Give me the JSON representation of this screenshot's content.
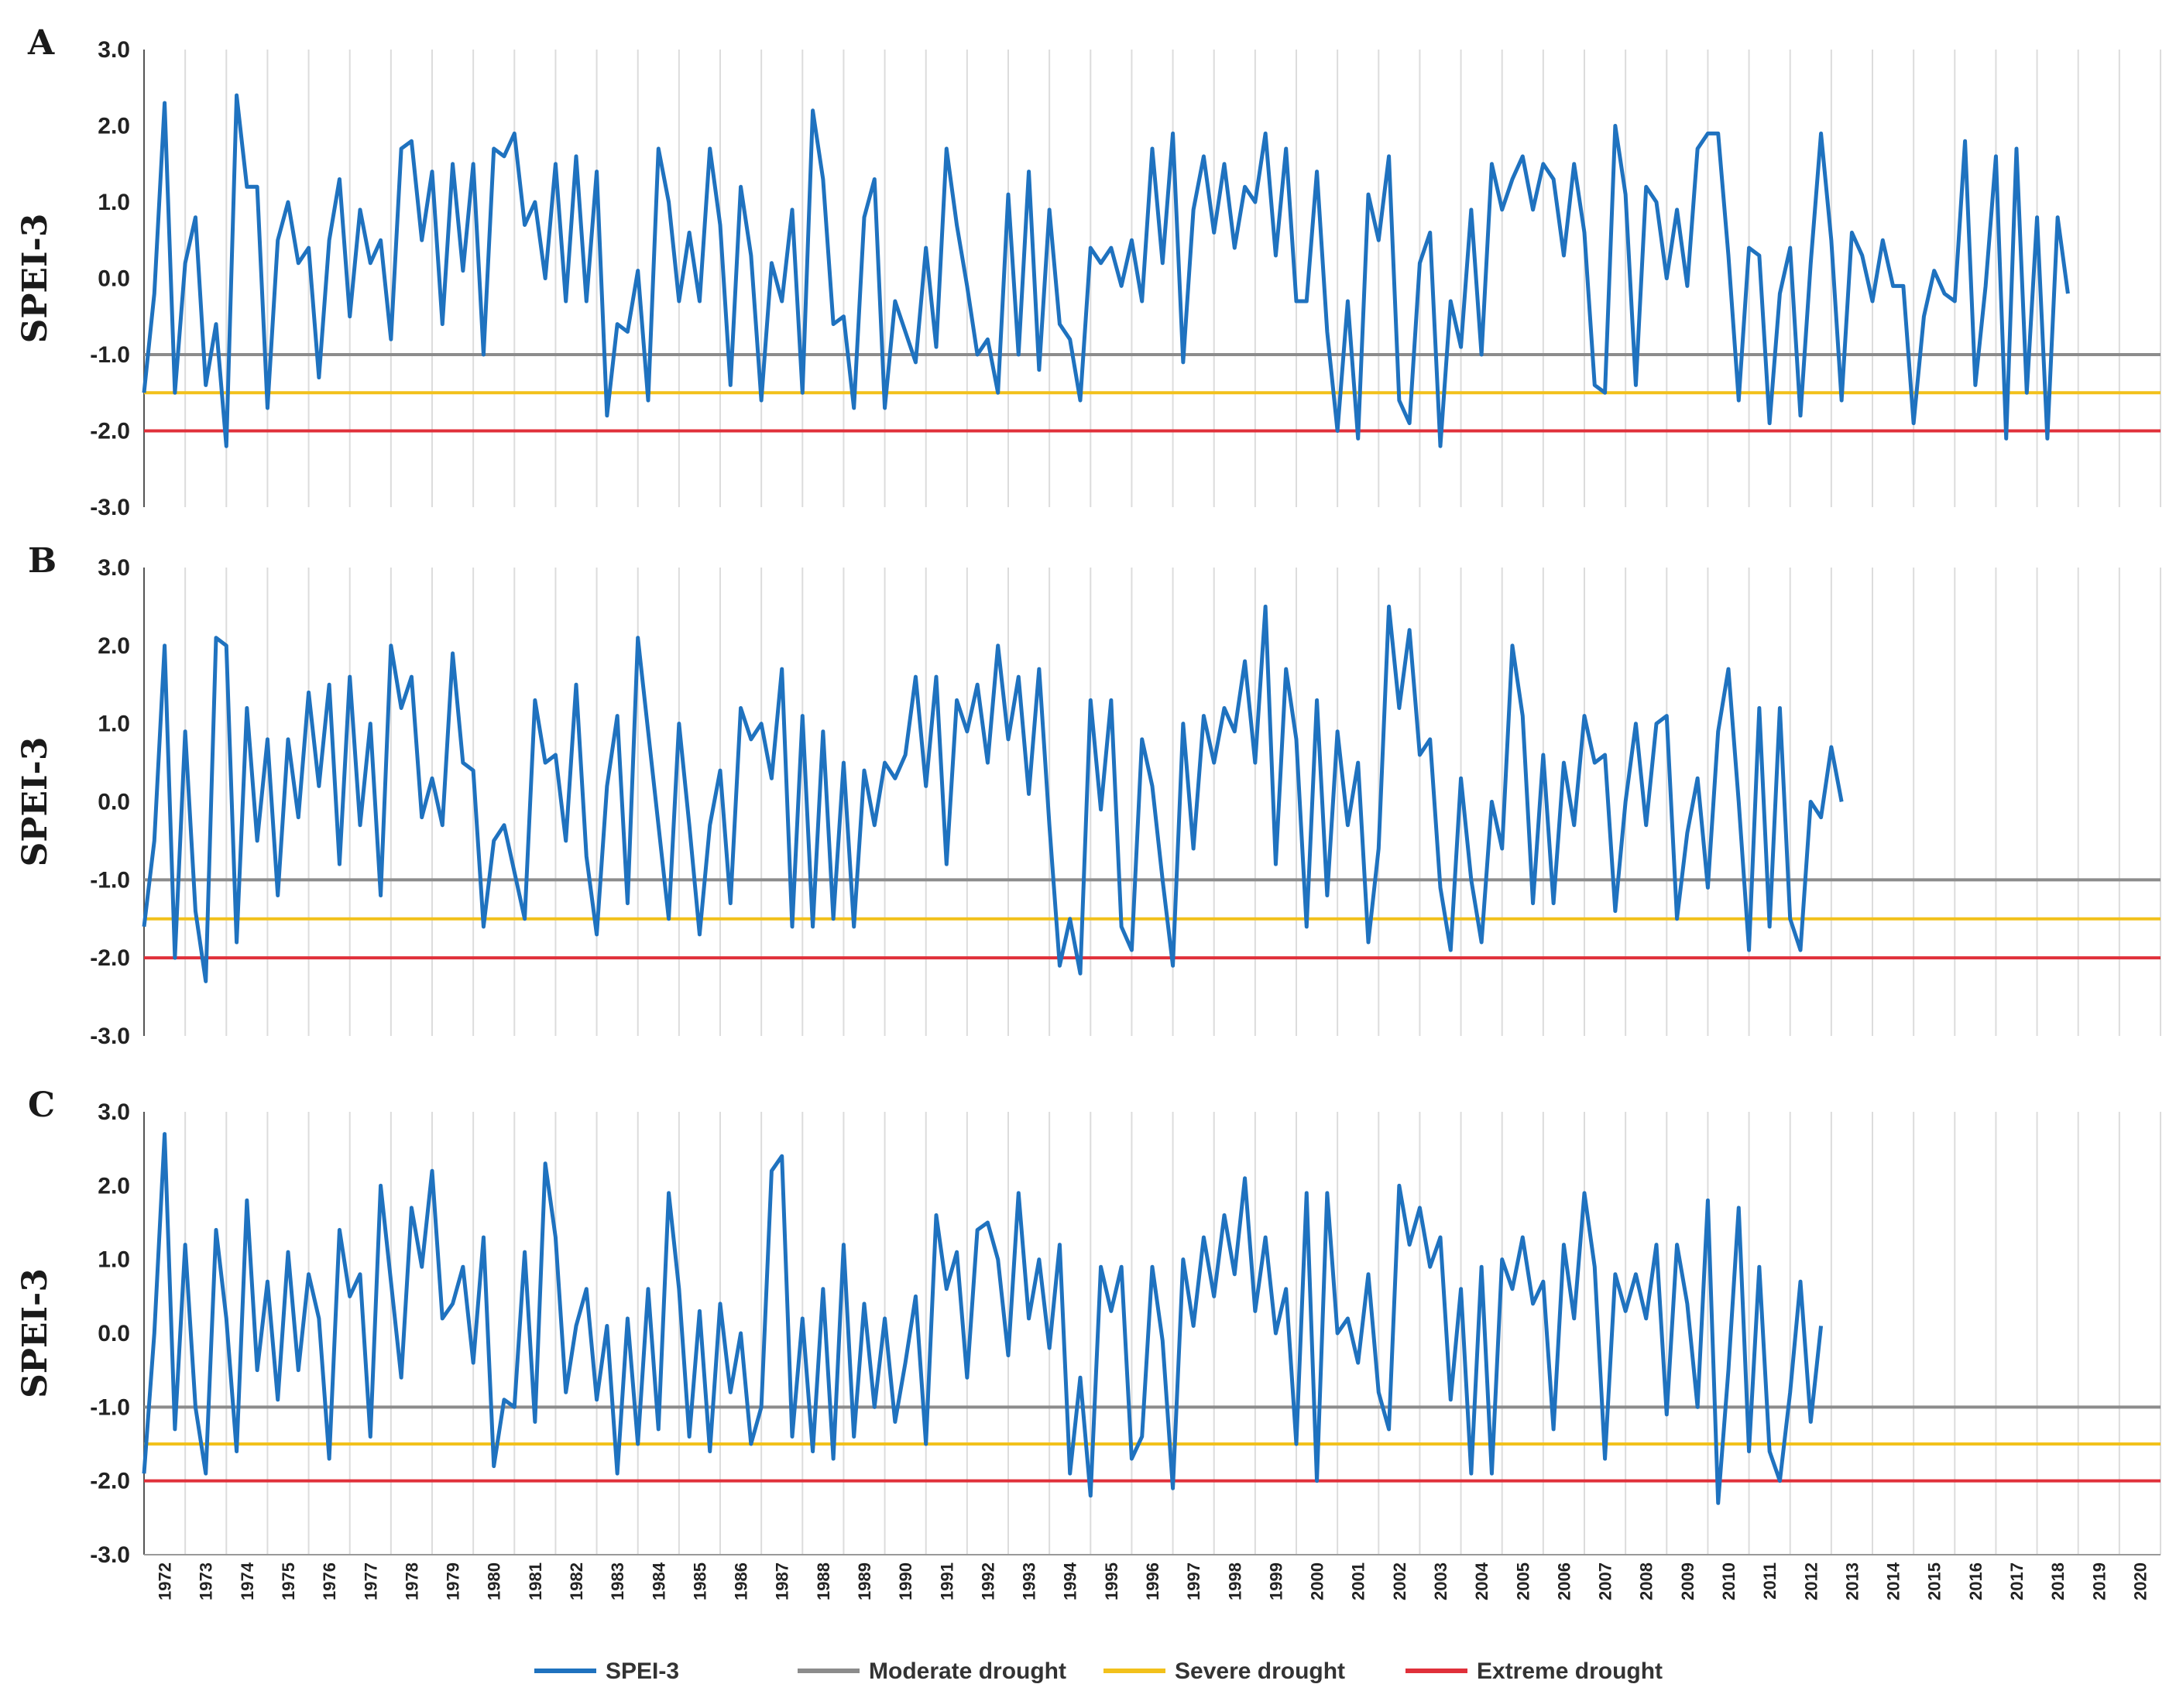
{
  "chart_data": {
    "type": "line",
    "ylabel": "SPEI-3",
    "ylim": [
      -3.0,
      3.0
    ],
    "y_ticks": [
      "3.0",
      "2.0",
      "1.0",
      "0.0",
      "-1.0",
      "-2.0",
      "-3.0"
    ],
    "x_range": [
      1972,
      2020
    ],
    "x_tick_labels": [
      "1972",
      "1973",
      "1974",
      "1975",
      "1976",
      "1977",
      "1978",
      "1979",
      "1980",
      "1981",
      "1982",
      "1983",
      "1984",
      "1985",
      "1986",
      "1987",
      "1988",
      "1989",
      "1990",
      "1991",
      "1992",
      "1993",
      "1994",
      "1995",
      "1996",
      "1997",
      "1998",
      "1999",
      "2000",
      "2001",
      "2002",
      "2003",
      "2004",
      "2005",
      "2006",
      "2007",
      "2008",
      "2009",
      "2010",
      "2011",
      "2012",
      "2013",
      "2014",
      "2015",
      "2016",
      "2017",
      "2018",
      "2019",
      "2020"
    ],
    "grid": true,
    "legend_position": "bottom",
    "thresholds": [
      {
        "name": "Moderate drought",
        "value": -1.0,
        "color": "#8c8c8c"
      },
      {
        "name": "Severe drought",
        "value": -1.5,
        "color": "#f2c11b"
      },
      {
        "name": "Extreme drought",
        "value": -2.0,
        "color": "#e0303a"
      }
    ],
    "series_color": "#1f72bf",
    "legend": [
      {
        "label": "SPEI-3",
        "color": "#1f72bf"
      },
      {
        "label": "Moderate drought",
        "color": "#8c8c8c"
      },
      {
        "label": "Severe drought",
        "color": "#f2c11b"
      },
      {
        "label": "Extreme drought",
        "color": "#e0303a"
      }
    ],
    "panels": [
      {
        "label": "A",
        "series": [
          {
            "name": "SPEI-3",
            "x_start": 1972.0,
            "x_step": 0.25,
            "values": [
              -1.5,
              -0.2,
              2.3,
              -1.5,
              0.2,
              0.8,
              -1.4,
              -0.6,
              -2.2,
              2.4,
              1.2,
              1.2,
              -1.7,
              0.5,
              1.0,
              0.2,
              0.4,
              -1.3,
              0.5,
              1.3,
              -0.5,
              0.9,
              0.2,
              0.5,
              -0.8,
              1.7,
              1.8,
              0.5,
              1.4,
              -0.6,
              1.5,
              0.1,
              1.5,
              -1.0,
              1.7,
              1.6,
              1.9,
              0.7,
              1.0,
              0.0,
              1.5,
              -0.3,
              1.6,
              -0.3,
              1.4,
              -1.8,
              -0.6,
              -0.7,
              0.1,
              -1.6,
              1.7,
              1.0,
              -0.3,
              0.6,
              -0.3,
              1.7,
              0.7,
              -1.4,
              1.2,
              0.3,
              -1.6,
              0.2,
              -0.3,
              0.9,
              -1.5,
              2.2,
              1.3,
              -0.6,
              -0.5,
              -1.7,
              0.8,
              1.3,
              -1.7,
              -0.3,
              -0.7,
              -1.1,
              0.4,
              -0.9,
              1.7,
              0.7,
              -0.1,
              -1.0,
              -0.8,
              -1.5,
              1.1,
              -1.0,
              1.4,
              -1.2,
              0.9,
              -0.6,
              -0.8,
              -1.6,
              0.4,
              0.2,
              0.4,
              -0.1,
              0.5,
              -0.3,
              1.7,
              0.2,
              1.9,
              -1.1,
              0.9,
              1.6,
              0.6,
              1.5,
              0.4,
              1.2,
              1.0,
              1.9,
              0.3,
              1.7,
              -0.3,
              -0.3,
              1.4,
              -0.7,
              -2.0,
              -0.3,
              -2.1,
              1.1,
              0.5,
              1.6,
              -1.6,
              -1.9,
              0.2,
              0.6,
              -2.2,
              -0.3,
              -0.9,
              0.9,
              -1.0,
              1.5,
              0.9,
              1.3,
              1.6,
              0.9,
              1.5,
              1.3,
              0.3,
              1.5,
              0.6,
              -1.4,
              -1.5,
              2.0,
              1.1,
              -1.4,
              1.2,
              1.0,
              0.0,
              0.9,
              -0.1,
              1.7,
              1.9,
              1.9,
              0.3,
              -1.6,
              0.4,
              0.3,
              -1.9,
              -0.2,
              0.4,
              -1.8,
              0.2,
              1.9,
              0.5,
              -1.6,
              0.6,
              0.3,
              -0.3,
              0.5,
              -0.1,
              -0.1,
              -1.9,
              -0.5,
              0.1,
              -0.2,
              -0.3,
              1.8,
              -1.4,
              -0.1,
              1.6,
              -2.1,
              1.7,
              -1.5,
              0.8,
              -2.1,
              0.8,
              -0.2
            ]
          }
        ]
      },
      {
        "label": "B",
        "series": [
          {
            "name": "SPEI-3",
            "x_start": 1972.0,
            "x_step": 0.25,
            "values": [
              -1.6,
              -0.5,
              2.0,
              -2.0,
              0.9,
              -1.4,
              -2.3,
              2.1,
              2.0,
              -1.8,
              1.2,
              -0.5,
              0.8,
              -1.2,
              0.8,
              -0.2,
              1.4,
              0.2,
              1.5,
              -0.8,
              1.6,
              -0.3,
              1.0,
              -1.2,
              2.0,
              1.2,
              1.6,
              -0.2,
              0.3,
              -0.3,
              1.9,
              0.5,
              0.4,
              -1.6,
              -0.5,
              -0.3,
              -0.9,
              -1.5,
              1.3,
              0.5,
              0.6,
              -0.5,
              1.5,
              -0.7,
              -1.7,
              0.2,
              1.1,
              -1.3,
              2.1,
              0.9,
              -0.3,
              -1.5,
              1.0,
              -0.3,
              -1.7,
              -0.3,
              0.4,
              -1.3,
              1.2,
              0.8,
              1.0,
              0.3,
              1.7,
              -1.6,
              1.1,
              -1.6,
              0.9,
              -1.5,
              0.5,
              -1.6,
              0.4,
              -0.3,
              0.5,
              0.3,
              0.6,
              1.6,
              0.2,
              1.6,
              -0.8,
              1.3,
              0.9,
              1.5,
              0.5,
              2.0,
              0.8,
              1.6,
              0.1,
              1.7,
              -0.3,
              -2.1,
              -1.5,
              -2.2,
              1.3,
              -0.1,
              1.3,
              -1.6,
              -1.9,
              0.8,
              0.2,
              -1.0,
              -2.1,
              1.0,
              -0.6,
              1.1,
              0.5,
              1.2,
              0.9,
              1.8,
              0.5,
              2.5,
              -0.8,
              1.7,
              0.8,
              -1.6,
              1.3,
              -1.2,
              0.9,
              -0.3,
              0.5,
              -1.8,
              -0.6,
              2.5,
              1.2,
              2.2,
              0.6,
              0.8,
              -1.1,
              -1.9,
              0.3,
              -1.0,
              -1.8,
              0.0,
              -0.6,
              2.0,
              1.1,
              -1.3,
              0.6,
              -1.3,
              0.5,
              -0.3,
              1.1,
              0.5,
              0.6,
              -1.4,
              0.0,
              1.0,
              -0.3,
              1.0,
              1.1,
              -1.5,
              -0.4,
              0.3,
              -1.1,
              0.9,
              1.7,
              0.0,
              -1.9,
              1.2,
              -1.6,
              1.2,
              -1.5,
              -1.9,
              0.0,
              -0.2,
              0.7,
              0.0
            ]
          }
        ]
      },
      {
        "label": "C",
        "series": [
          {
            "name": "SPEI-3",
            "x_start": 1972.0,
            "x_step": 0.25,
            "values": [
              -1.9,
              0.0,
              2.7,
              -1.3,
              1.2,
              -1.0,
              -1.9,
              1.4,
              0.2,
              -1.6,
              1.8,
              -0.5,
              0.7,
              -0.9,
              1.1,
              -0.5,
              0.8,
              0.2,
              -1.7,
              1.4,
              0.5,
              0.8,
              -1.4,
              2.0,
              0.7,
              -0.6,
              1.7,
              0.9,
              2.2,
              0.2,
              0.4,
              0.9,
              -0.4,
              1.3,
              -1.8,
              -0.9,
              -1.0,
              1.1,
              -1.2,
              2.3,
              1.3,
              -0.8,
              0.1,
              0.6,
              -0.9,
              0.1,
              -1.9,
              0.2,
              -1.5,
              0.6,
              -1.3,
              1.9,
              0.6,
              -1.4,
              0.3,
              -1.6,
              0.4,
              -0.8,
              0.0,
              -1.5,
              -1.0,
              2.2,
              2.4,
              -1.4,
              0.2,
              -1.6,
              0.6,
              -1.7,
              1.2,
              -1.4,
              0.4,
              -1.0,
              0.2,
              -1.2,
              -0.4,
              0.5,
              -1.5,
              1.6,
              0.6,
              1.1,
              -0.6,
              1.4,
              1.5,
              1.0,
              -0.3,
              1.9,
              0.2,
              1.0,
              -0.2,
              1.2,
              -1.9,
              -0.6,
              -2.2,
              0.9,
              0.3,
              0.9,
              -1.7,
              -1.4,
              0.9,
              -0.1,
              -2.1,
              1.0,
              0.1,
              1.3,
              0.5,
              1.6,
              0.8,
              2.1,
              0.3,
              1.3,
              0.0,
              0.6,
              -1.5,
              1.9,
              -2.0,
              1.9,
              0.0,
              0.2,
              -0.4,
              0.8,
              -0.8,
              -1.3,
              2.0,
              1.2,
              1.7,
              0.9,
              1.3,
              -0.9,
              0.6,
              -1.9,
              0.9,
              -1.9,
              1.0,
              0.6,
              1.3,
              0.4,
              0.7,
              -1.3,
              1.2,
              0.2,
              1.9,
              0.9,
              -1.7,
              0.8,
              0.3,
              0.8,
              0.2,
              1.2,
              -1.1,
              1.2,
              0.4,
              -1.0,
              1.8,
              -2.3,
              -0.5,
              1.7,
              -1.6,
              0.9,
              -1.6,
              -2.0,
              -0.8,
              0.7,
              -1.2,
              0.1
            ]
          }
        ]
      }
    ]
  }
}
